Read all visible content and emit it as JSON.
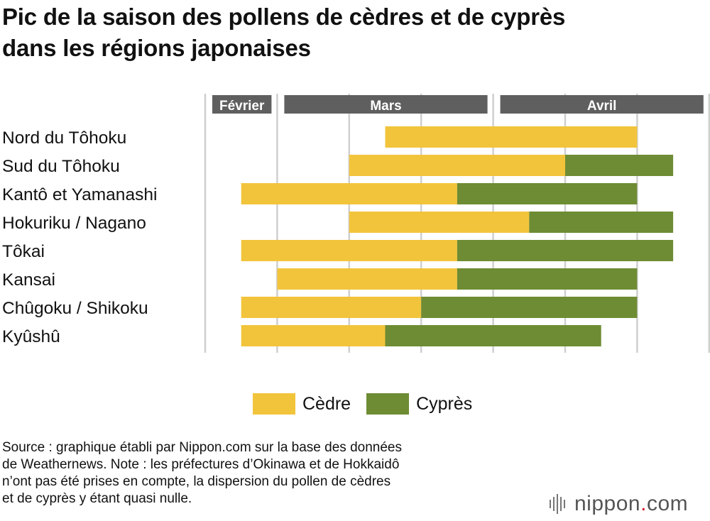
{
  "title_lines": [
    "Pic de la saison des pollens de cèdres et de cyprès",
    "dans les régions japonaises"
  ],
  "colors": {
    "cedre": "#F2C43C",
    "cypres": "#6E8C33",
    "month_header": "#5F5F5F",
    "gridline": "#CFCFCF"
  },
  "chart_data": {
    "type": "bar",
    "orientation": "horizontal",
    "stacked": true,
    "time_unit": "dekad (third of a month)",
    "period_labels": [
      "Février",
      "Mars",
      "Avril"
    ],
    "period_spans": [
      {
        "label": "Février",
        "start": 0,
        "end": 1
      },
      {
        "label": "Mars",
        "start": 1,
        "end": 4
      },
      {
        "label": "Avril",
        "start": 4,
        "end": 7
      }
    ],
    "x_range": [
      0,
      7
    ],
    "gridlines": [
      0,
      1,
      2,
      3,
      4,
      5,
      6,
      7
    ],
    "categories": [
      "Nord du Tôhoku",
      "Sud du Tôhoku",
      "Kantô et Yamanashi",
      "Hokuriku / Nagano",
      "Tôkai",
      "Kansai",
      "Chûgoku / Shikoku",
      "Kyûshû"
    ],
    "series": [
      {
        "name": "Cèdre",
        "color": "#F2C43C",
        "spans": [
          [
            2.5,
            6
          ],
          [
            2,
            5
          ],
          [
            0.5,
            3.5
          ],
          [
            2,
            4.5
          ],
          [
            0.5,
            3.5
          ],
          [
            1,
            3.5
          ],
          [
            0.5,
            3
          ],
          [
            0.5,
            2.5
          ]
        ]
      },
      {
        "name": "Cyprès",
        "color": "#6E8C33",
        "spans": [
          null,
          [
            5,
            6.5
          ],
          [
            3.5,
            6
          ],
          [
            4.5,
            6.5
          ],
          [
            3.5,
            6.5
          ],
          [
            3.5,
            6
          ],
          [
            3,
            6
          ],
          [
            2.5,
            5.5
          ]
        ]
      }
    ]
  },
  "legend": [
    {
      "label": "Cèdre",
      "color": "#F2C43C"
    },
    {
      "label": "Cyprès",
      "color": "#6E8C33"
    }
  ],
  "source_note": "Source : graphique établi par Nippon.com sur la base des données\nde Weathernews. Note : les préfectures d’Okinawa et de Hokkaidô\nn’ont pas été prises en compte, la dispersion du pollen de cèdres\net de cyprès y étant quasi nulle.",
  "logo": {
    "name": "nippon",
    "dot": ".",
    "suffix": "com"
  }
}
